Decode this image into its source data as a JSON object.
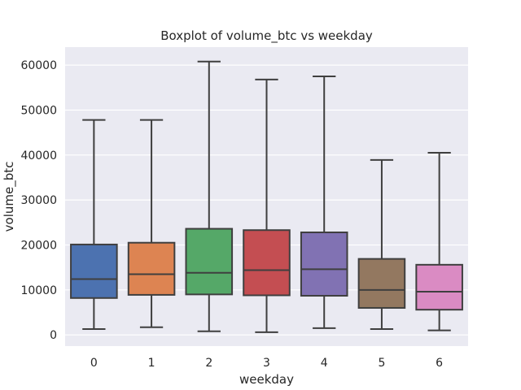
{
  "chart_data": {
    "type": "boxplot",
    "title": "Boxplot of volume_btc vs weekday",
    "xlabel": "weekday",
    "ylabel": "volume_btc",
    "ylim": [
      -2500,
      64000
    ],
    "yticks": [
      0,
      10000,
      20000,
      30000,
      40000,
      50000,
      60000
    ],
    "grid": true,
    "categories": [
      "0",
      "1",
      "2",
      "3",
      "4",
      "5",
      "6"
    ],
    "boxes": [
      {
        "category": "0",
        "whisker_low": 1300,
        "q1": 8200,
        "median": 12400,
        "q3": 20100,
        "whisker_high": 47800,
        "color": "#4c72b0"
      },
      {
        "category": "1",
        "whisker_low": 1700,
        "q1": 8900,
        "median": 13500,
        "q3": 20500,
        "whisker_high": 47800,
        "color": "#dd8452"
      },
      {
        "category": "2",
        "whisker_low": 800,
        "q1": 9000,
        "median": 13800,
        "q3": 23600,
        "whisker_high": 60800,
        "color": "#55a868"
      },
      {
        "category": "3",
        "whisker_low": 600,
        "q1": 8800,
        "median": 14400,
        "q3": 23300,
        "whisker_high": 56800,
        "color": "#c44e52"
      },
      {
        "category": "4",
        "whisker_low": 1500,
        "q1": 8700,
        "median": 14600,
        "q3": 22800,
        "whisker_high": 57500,
        "color": "#8172b3"
      },
      {
        "category": "5",
        "whisker_low": 1300,
        "q1": 6000,
        "median": 10000,
        "q3": 16900,
        "whisker_high": 38900,
        "color": "#937860"
      },
      {
        "category": "6",
        "whisker_low": 1000,
        "q1": 5600,
        "median": 9600,
        "q3": 15600,
        "whisker_high": 40500,
        "color": "#da8bc3"
      }
    ],
    "background_color": "#eaeaf2",
    "grid_color": "#ffffff",
    "line_color": "#3f3f3f"
  }
}
